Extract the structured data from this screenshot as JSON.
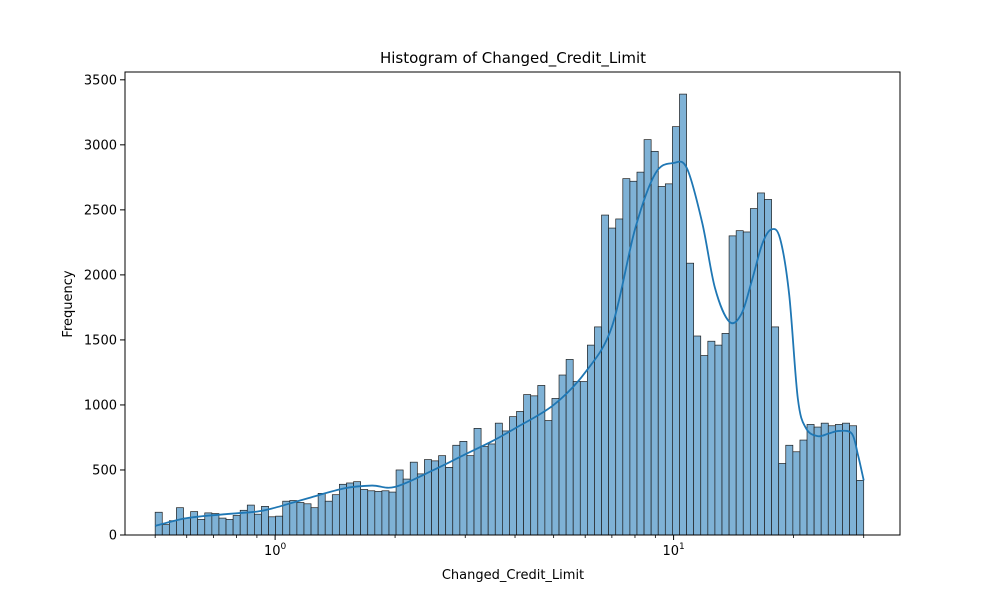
{
  "chart_data": {
    "type": "bar",
    "title": "Histogram of Changed_Credit_Limit",
    "xlabel": "Changed_Credit_Limit",
    "ylabel": "Frequency",
    "x_scale": "log",
    "xlim": [
      0.42,
      37
    ],
    "ylim": [
      0,
      3560
    ],
    "x_tick_labels": [
      {
        "base": "10",
        "exp": "0",
        "value": 1
      },
      {
        "base": "10",
        "exp": "1",
        "value": 10
      }
    ],
    "y_ticks": [
      0,
      500,
      1000,
      1500,
      2000,
      2500,
      3000,
      3500
    ],
    "grid": false,
    "colors": {
      "bar_fill": "#7fb2d6",
      "bar_edge": "#1f1f1f",
      "kde_line": "#1f77b4"
    },
    "bins": {
      "start": 0.5,
      "end": 30.0,
      "count": 100
    },
    "values": [
      175,
      80,
      110,
      210,
      130,
      180,
      120,
      170,
      165,
      130,
      120,
      150,
      190,
      230,
      160,
      220,
      140,
      145,
      260,
      265,
      250,
      240,
      210,
      320,
      260,
      310,
      390,
      400,
      410,
      350,
      340,
      335,
      340,
      330,
      500,
      430,
      560,
      470,
      580,
      570,
      610,
      520,
      690,
      720,
      610,
      820,
      680,
      700,
      860,
      800,
      910,
      950,
      1080,
      1070,
      1150,
      880,
      1050,
      1230,
      1350,
      1180,
      1180,
      1460,
      1600,
      2460,
      2360,
      2430,
      2740,
      2720,
      2790,
      3040,
      2950,
      2680,
      2700,
      3140,
      3390,
      2090,
      1530,
      1380,
      1490,
      1460,
      1550,
      2300,
      2340,
      2330,
      2510,
      2630,
      2580,
      1600,
      550,
      690,
      640,
      730,
      850,
      830,
      860,
      840,
      850,
      860,
      840,
      420
    ],
    "kde": {
      "x": [
        0.5,
        0.6,
        0.75,
        0.9,
        1.0,
        1.2,
        1.5,
        1.75,
        2.0,
        2.5,
        3.0,
        3.5,
        4.0,
        5.0,
        6.0,
        7.0,
        8.0,
        9.0,
        10.0,
        10.8,
        11.8,
        12.7,
        13.8,
        14.8,
        15.7,
        16.7,
        17.6,
        18.5,
        19.5,
        20.5,
        21.5,
        23.0,
        24.5,
        26.0,
        28.0,
        29.0,
        30.0
      ],
      "y": [
        70,
        130,
        160,
        180,
        210,
        280,
        360,
        380,
        370,
        500,
        620,
        720,
        820,
        1000,
        1250,
        1600,
        2350,
        2780,
        2860,
        2820,
        2400,
        1900,
        1640,
        1700,
        1950,
        2240,
        2350,
        2280,
        1850,
        1050,
        820,
        760,
        780,
        800,
        780,
        620,
        420
      ]
    }
  }
}
